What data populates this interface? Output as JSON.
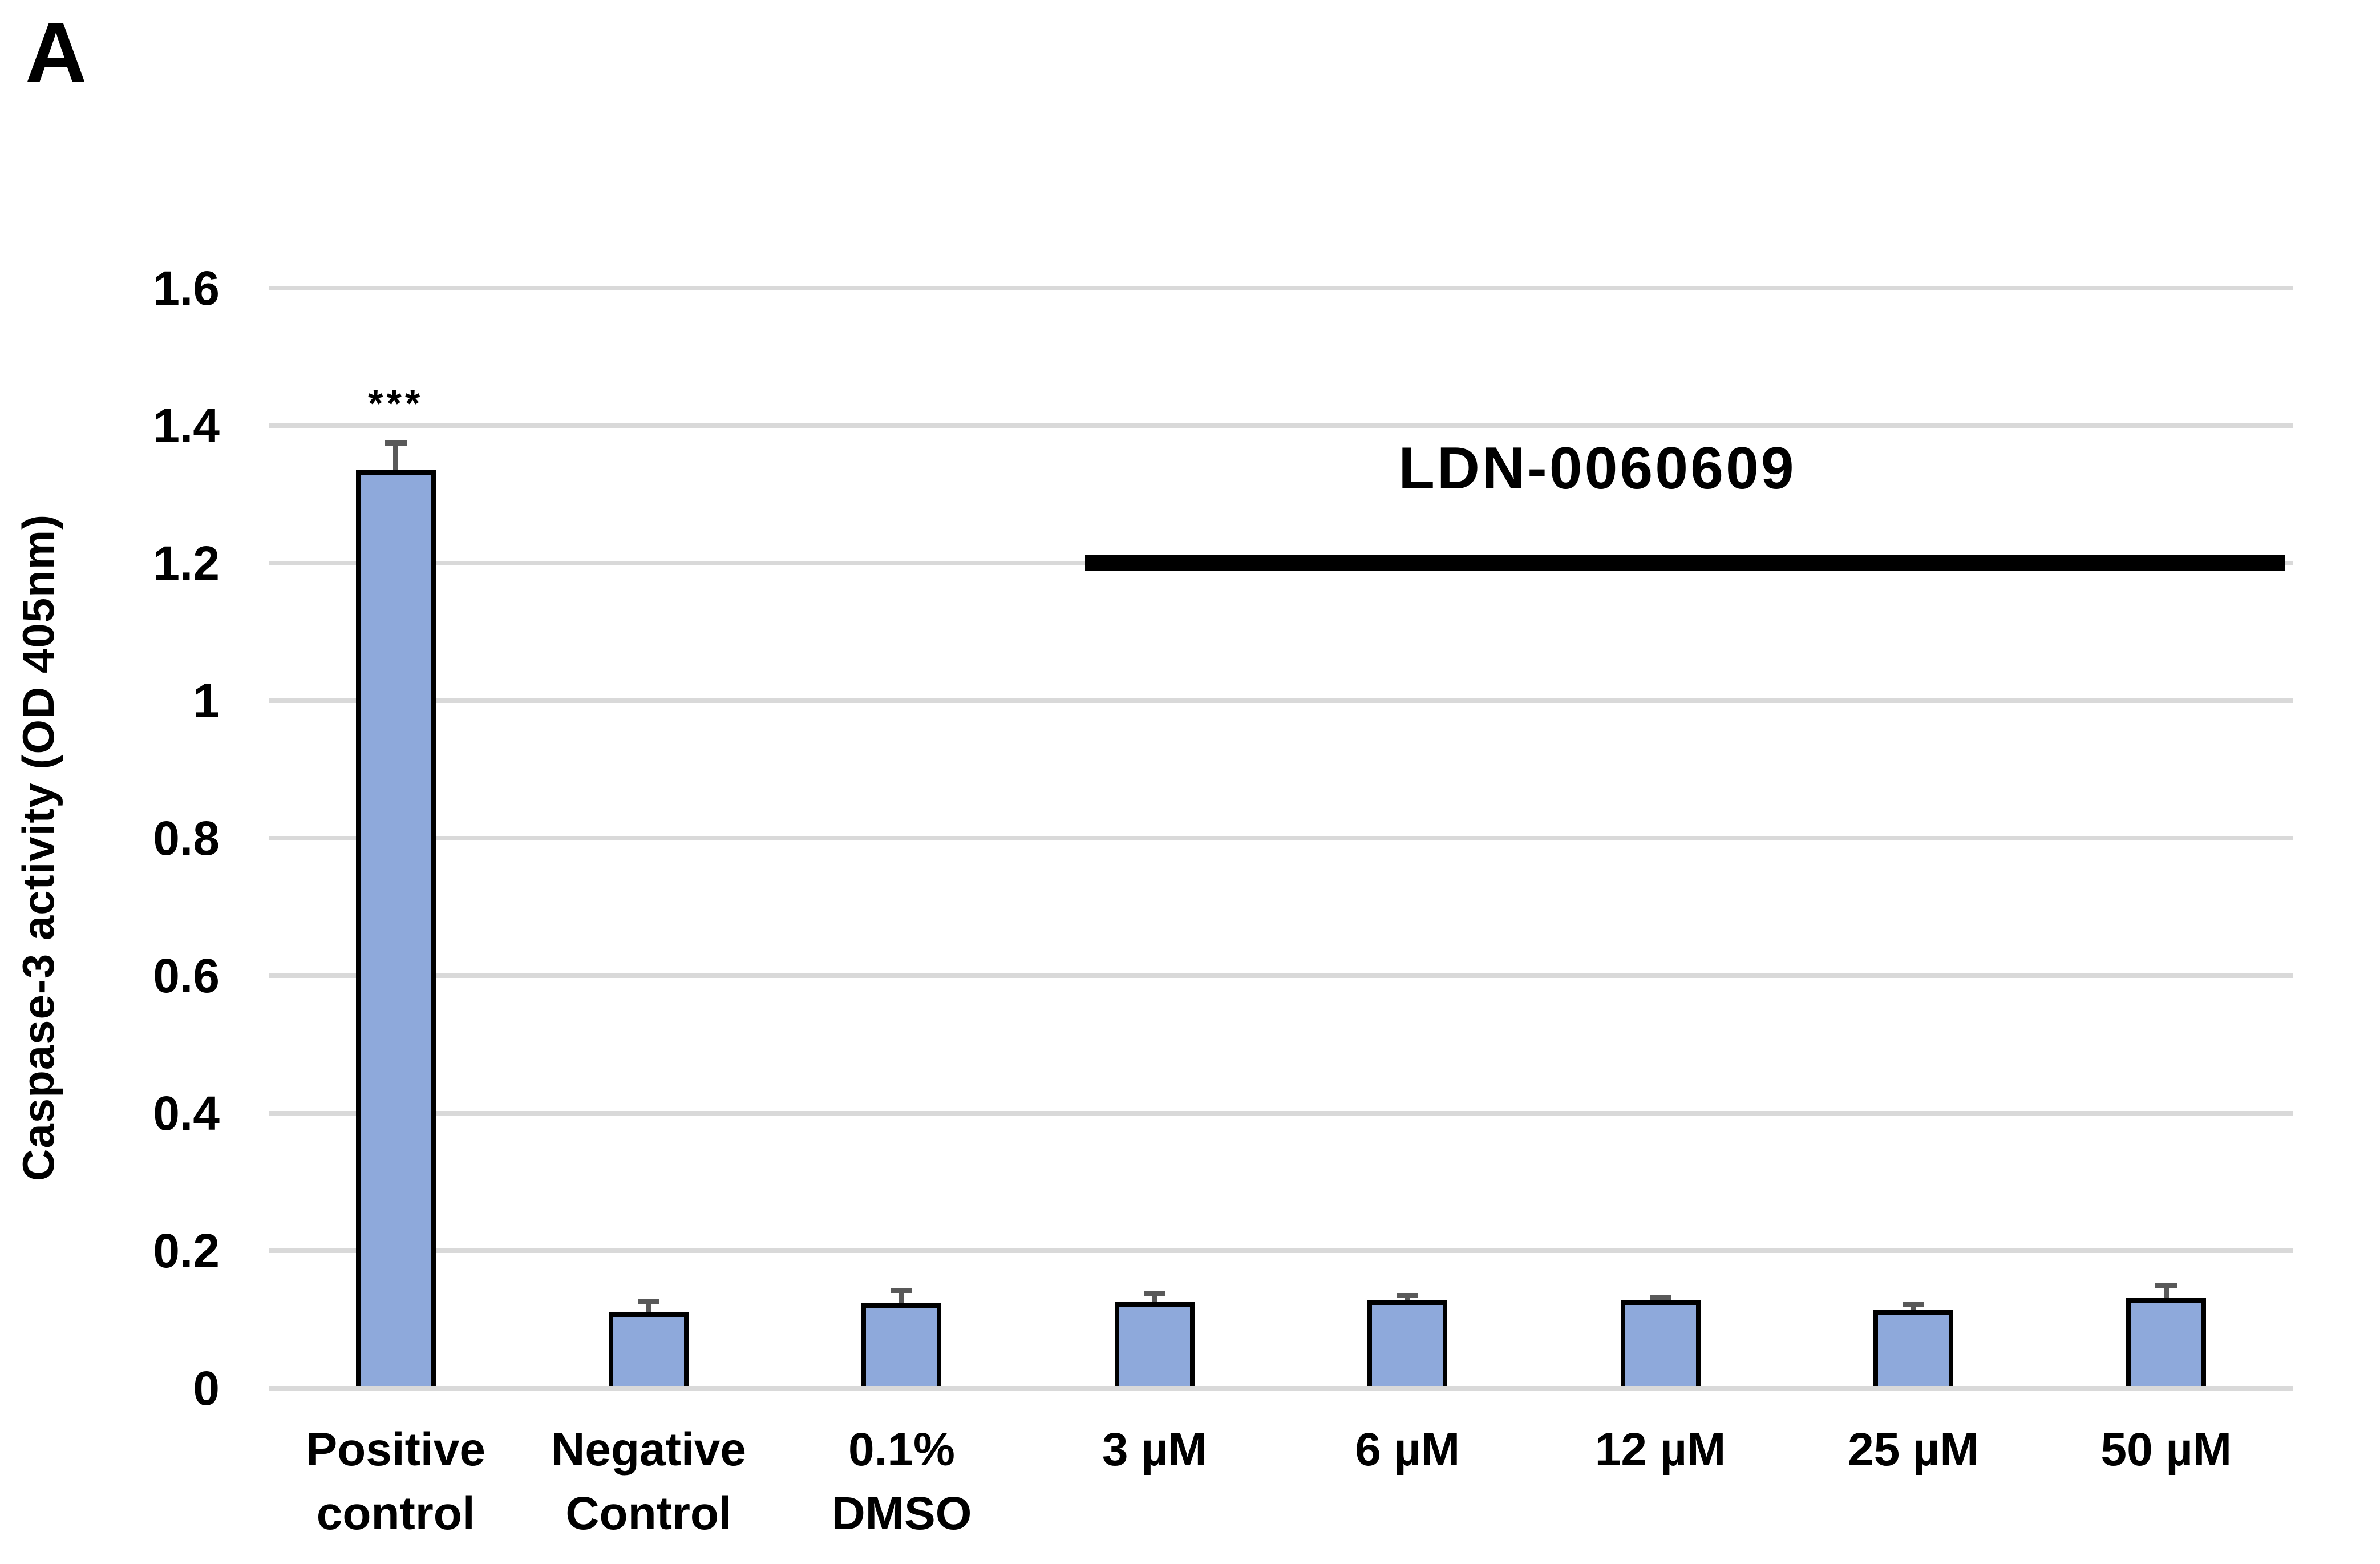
{
  "panel_label": "A",
  "chart_data": {
    "type": "bar",
    "title": "",
    "xlabel": "",
    "ylabel": "Caspase-3 activity (OD 405nm)",
    "ylim": [
      0,
      1.6
    ],
    "ytick_step": 0.2,
    "yticks": [
      "1.6",
      "1.4",
      "1.2",
      "1",
      "0.8",
      "0.6",
      "0.4",
      "0.2",
      "0"
    ],
    "grid": true,
    "legend": "none",
    "categories": [
      "Positive control",
      "Negative Control",
      "0.1% DMSO",
      "3 µM",
      "6 µM",
      "12 µM",
      "25 µM",
      "50 µM"
    ],
    "category_label_lines": [
      [
        "Positive",
        "control"
      ],
      [
        "Negative",
        "Control"
      ],
      [
        "0.1%",
        "DMSO"
      ],
      [
        "3 µM"
      ],
      [
        "6 µM"
      ],
      [
        "12 µM"
      ],
      [
        "25 µM"
      ],
      [
        "50 µM"
      ]
    ],
    "series": [
      {
        "name": "Caspase-3 activity",
        "values": [
          1.335,
          0.11,
          0.124,
          0.125,
          0.128,
          0.128,
          0.114,
          0.131
        ],
        "errors_plus": [
          0.04,
          0.016,
          0.019,
          0.014,
          0.007,
          0.004,
          0.008,
          0.019
        ]
      }
    ],
    "significance": {
      "category_index": 0,
      "label": "***"
    },
    "group_annotation": {
      "label": "LDN-0060609",
      "from_category": "3 µM",
      "to_category": "50 µM"
    },
    "colors": {
      "bar_fill": "#8EA9DB",
      "bar_border": "#000000",
      "error_bar": "#595959",
      "gridline": "#D9D9D9",
      "text": "#000000",
      "annotation_line": "#000000"
    }
  }
}
